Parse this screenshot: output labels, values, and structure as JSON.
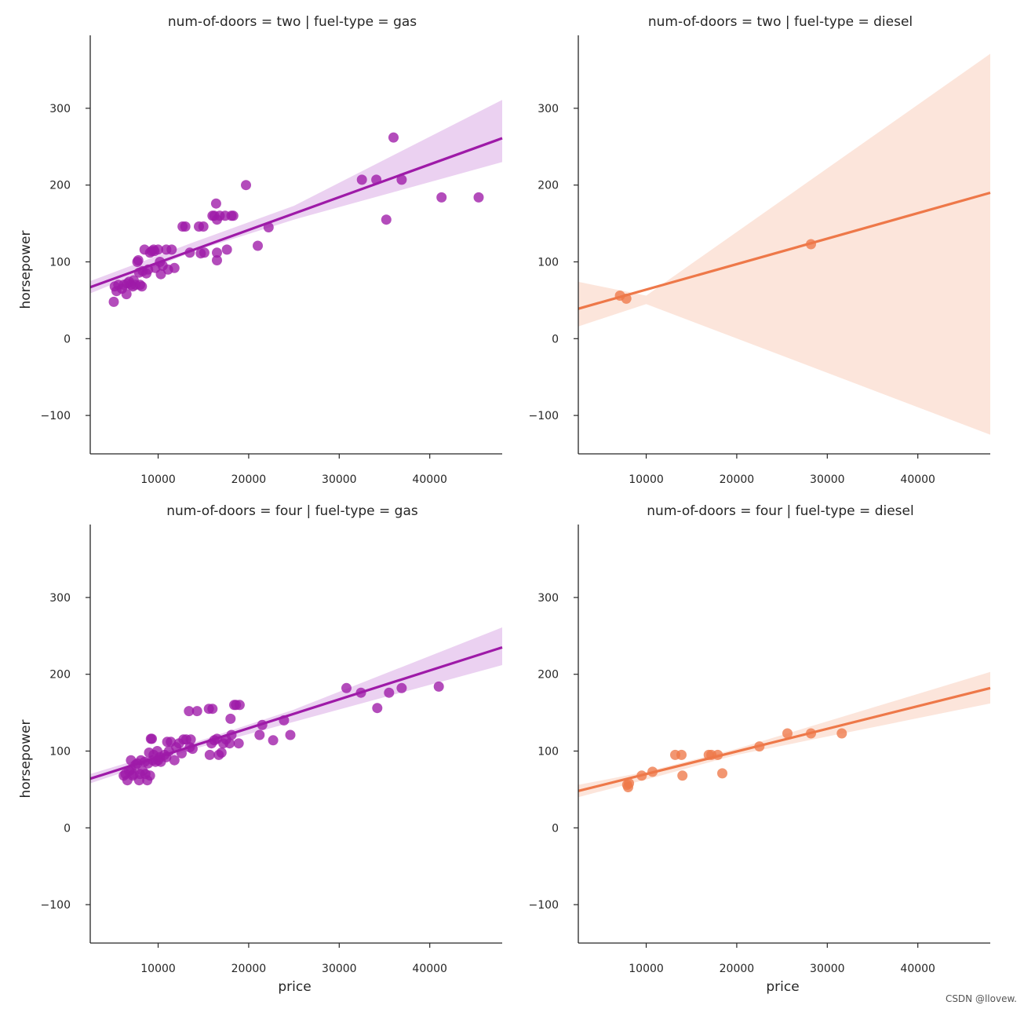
{
  "watermark": "CSDN @llovew.",
  "colors": {
    "gas": "#9e1aa8",
    "diesel": "#ee7849",
    "gas_band": "#e8c9ee",
    "diesel_band": "#fbe0d5",
    "axis": "#262626"
  },
  "chart_data": [
    {
      "type": "scatter",
      "title": "num-of-doors = two | fuel-type = gas",
      "xlabel": "",
      "ylabel": "horsepower",
      "xlim": [
        2500,
        48000
      ],
      "ylim": [
        -150,
        395
      ],
      "xticks": [
        10000,
        20000,
        30000,
        40000
      ],
      "yticks": [
        -100,
        0,
        100,
        200,
        300
      ],
      "xtick_labels": [
        "10000",
        "20000",
        "30000",
        "40000"
      ],
      "ytick_labels": [
        "−100",
        "0",
        "100",
        "200",
        "300"
      ],
      "color_key": "gas",
      "points": [
        [
          5100,
          48
        ],
        [
          5200,
          68
        ],
        [
          5400,
          62
        ],
        [
          5600,
          70
        ],
        [
          6000,
          65
        ],
        [
          6200,
          70
        ],
        [
          6500,
          58
        ],
        [
          6600,
          72
        ],
        [
          6800,
          74
        ],
        [
          7000,
          70
        ],
        [
          7200,
          68
        ],
        [
          7300,
          76
        ],
        [
          7500,
          70
        ],
        [
          7700,
          100
        ],
        [
          7800,
          102
        ],
        [
          7900,
          86
        ],
        [
          8000,
          70
        ],
        [
          8200,
          68
        ],
        [
          8300,
          88
        ],
        [
          8500,
          116
        ],
        [
          8700,
          85
        ],
        [
          8900,
          90
        ],
        [
          9100,
          112
        ],
        [
          9300,
          114
        ],
        [
          9500,
          116
        ],
        [
          9600,
          114
        ],
        [
          9700,
          92
        ],
        [
          10000,
          116
        ],
        [
          10200,
          100
        ],
        [
          10300,
          84
        ],
        [
          10500,
          95
        ],
        [
          10900,
          116
        ],
        [
          11100,
          90
        ],
        [
          11500,
          116
        ],
        [
          11800,
          92
        ],
        [
          12700,
          146
        ],
        [
          13000,
          146
        ],
        [
          13500,
          112
        ],
        [
          14500,
          146
        ],
        [
          14700,
          111
        ],
        [
          15000,
          146
        ],
        [
          15100,
          112
        ],
        [
          16000,
          160
        ],
        [
          16200,
          160
        ],
        [
          16400,
          176
        ],
        [
          16500,
          112
        ],
        [
          16500,
          102
        ],
        [
          16500,
          155
        ],
        [
          16800,
          160
        ],
        [
          17400,
          160
        ],
        [
          17600,
          116
        ],
        [
          18100,
          160
        ],
        [
          18300,
          160
        ],
        [
          19700,
          200
        ],
        [
          21000,
          121
        ],
        [
          22200,
          145
        ],
        [
          32500,
          207
        ],
        [
          34100,
          207
        ],
        [
          35200,
          155
        ],
        [
          36000,
          262
        ],
        [
          36900,
          207
        ],
        [
          41300,
          184
        ],
        [
          45400,
          184
        ]
      ],
      "fit": {
        "x": [
          2500,
          48000
        ],
        "y": [
          67,
          261
        ]
      },
      "ci": {
        "x": [
          2500,
          14000,
          25000,
          48000
        ],
        "upper": [
          75,
          126,
          173,
          311
        ],
        "lower": [
          59,
          114,
          155,
          230
        ]
      }
    },
    {
      "type": "scatter",
      "title": "num-of-doors = two | fuel-type = diesel",
      "xlabel": "",
      "ylabel": "",
      "xlim": [
        2500,
        48000
      ],
      "ylim": [
        -150,
        395
      ],
      "xticks": [
        10000,
        20000,
        30000,
        40000
      ],
      "yticks": [
        -100,
        0,
        100,
        200,
        300
      ],
      "xtick_labels": [
        "10000",
        "20000",
        "30000",
        "40000"
      ],
      "ytick_labels": [
        "−100",
        "0",
        "100",
        "200",
        "300"
      ],
      "color_key": "diesel",
      "points": [
        [
          7100,
          56
        ],
        [
          7800,
          52
        ],
        [
          28200,
          123
        ]
      ],
      "fit": {
        "x": [
          2500,
          48000
        ],
        "y": [
          39,
          190
        ]
      },
      "ci": {
        "x": [
          2500,
          10000,
          48000
        ],
        "upper": [
          74,
          56,
          371
        ],
        "lower": [
          16,
          45,
          -125
        ]
      }
    },
    {
      "type": "scatter",
      "title": "num-of-doors = four | fuel-type = gas",
      "xlabel": "price",
      "ylabel": "horsepower",
      "xlim": [
        2500,
        48000
      ],
      "ylim": [
        -150,
        395
      ],
      "xticks": [
        10000,
        20000,
        30000,
        40000
      ],
      "yticks": [
        -100,
        0,
        100,
        200,
        300
      ],
      "xtick_labels": [
        "10000",
        "20000",
        "30000",
        "40000"
      ],
      "ytick_labels": [
        "−100",
        "0",
        "100",
        "200",
        "300"
      ],
      "color_key": "gas",
      "points": [
        [
          6200,
          68
        ],
        [
          6400,
          70
        ],
        [
          6600,
          62
        ],
        [
          6800,
          74
        ],
        [
          7000,
          76
        ],
        [
          7000,
          88
        ],
        [
          7200,
          68
        ],
        [
          7300,
          70
        ],
        [
          7500,
          82
        ],
        [
          7700,
          84
        ],
        [
          7900,
          62
        ],
        [
          8000,
          70
        ],
        [
          8100,
          88
        ],
        [
          8300,
          74
        ],
        [
          8500,
          86
        ],
        [
          8600,
          70
        ],
        [
          8800,
          62
        ],
        [
          8900,
          84
        ],
        [
          9000,
          98
        ],
        [
          9100,
          68
        ],
        [
          9200,
          116
        ],
        [
          9300,
          116
        ],
        [
          9400,
          88
        ],
        [
          9500,
          95
        ],
        [
          9700,
          86
        ],
        [
          9900,
          100
        ],
        [
          10000,
          88
        ],
        [
          10200,
          92
        ],
        [
          10300,
          86
        ],
        [
          10700,
          95
        ],
        [
          10900,
          92
        ],
        [
          11000,
          112
        ],
        [
          11200,
          100
        ],
        [
          11400,
          112
        ],
        [
          11800,
          88
        ],
        [
          12000,
          105
        ],
        [
          12300,
          110
        ],
        [
          12600,
          97
        ],
        [
          12800,
          115
        ],
        [
          13100,
          115
        ],
        [
          13400,
          152
        ],
        [
          13500,
          105
        ],
        [
          13600,
          115
        ],
        [
          13800,
          103
        ],
        [
          14300,
          152
        ],
        [
          15600,
          155
        ],
        [
          15700,
          95
        ],
        [
          15900,
          110
        ],
        [
          16000,
          155
        ],
        [
          16200,
          114
        ],
        [
          16500,
          116
        ],
        [
          16700,
          95
        ],
        [
          17000,
          98
        ],
        [
          17200,
          110
        ],
        [
          17500,
          115
        ],
        [
          17900,
          110
        ],
        [
          18000,
          142
        ],
        [
          18100,
          121
        ],
        [
          18400,
          160
        ],
        [
          18600,
          160
        ],
        [
          18900,
          110
        ],
        [
          19000,
          160
        ],
        [
          21200,
          121
        ],
        [
          21500,
          134
        ],
        [
          22700,
          114
        ],
        [
          23900,
          140
        ],
        [
          24600,
          121
        ],
        [
          30800,
          182
        ],
        [
          32400,
          176
        ],
        [
          34200,
          156
        ],
        [
          35500,
          176
        ],
        [
          36900,
          182
        ],
        [
          41000,
          184
        ]
      ],
      "fit": {
        "x": [
          2500,
          48000
        ],
        "y": [
          64,
          235
        ]
      },
      "ci": {
        "x": [
          2500,
          14000,
          25000,
          48000
        ],
        "upper": [
          70,
          111,
          154,
          261
        ],
        "lower": [
          58,
          103,
          138,
          212
        ]
      }
    },
    {
      "type": "scatter",
      "title": "num-of-doors = four | fuel-type = diesel",
      "xlabel": "price",
      "ylabel": "",
      "xlim": [
        2500,
        48000
      ],
      "ylim": [
        -150,
        395
      ],
      "xticks": [
        10000,
        20000,
        30000,
        40000
      ],
      "yticks": [
        -100,
        0,
        100,
        200,
        300
      ],
      "xtick_labels": [
        "10000",
        "20000",
        "30000",
        "40000"
      ],
      "ytick_labels": [
        "−100",
        "0",
        "100",
        "200",
        "300"
      ],
      "color_key": "diesel",
      "points": [
        [
          7900,
          56
        ],
        [
          8000,
          53
        ],
        [
          8100,
          58
        ],
        [
          9500,
          68
        ],
        [
          10700,
          73
        ],
        [
          13200,
          95
        ],
        [
          13900,
          95
        ],
        [
          14000,
          68
        ],
        [
          16900,
          95
        ],
        [
          17200,
          95
        ],
        [
          17900,
          95
        ],
        [
          18400,
          71
        ],
        [
          22500,
          106
        ],
        [
          25600,
          123
        ],
        [
          28200,
          123
        ],
        [
          31600,
          123
        ]
      ],
      "fit": {
        "x": [
          2500,
          48000
        ],
        "y": [
          48,
          182
        ]
      },
      "ci": {
        "x": [
          2500,
          10000,
          20000,
          48000
        ],
        "upper": [
          56,
          73,
          103,
          203
        ],
        "lower": [
          40,
          63,
          95,
          162
        ]
      }
    }
  ]
}
